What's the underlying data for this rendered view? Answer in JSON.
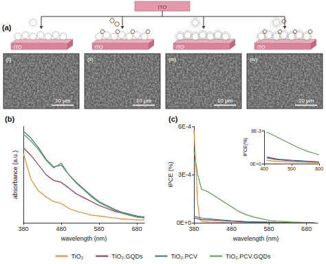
{
  "panel_a": {
    "label": "(a)",
    "top_substrate": "ITO",
    "columns": [
      {
        "substrate": "ITO",
        "sem_label": "(i)",
        "scale_bar": "10 μm"
      },
      {
        "substrate": "ITO",
        "sem_label": "(ii)",
        "scale_bar": "10 μm"
      },
      {
        "substrate": "ITO",
        "sem_label": "(iii)",
        "scale_bar": "10 μm"
      },
      {
        "substrate": "ITO",
        "sem_label": "(iv)",
        "scale_bar": "10 μm"
      }
    ]
  },
  "chart_data": [
    {
      "type": "line",
      "title": "(b)",
      "x_label": "wavelength (nm)",
      "y_label": "absorbance (a.u.)",
      "xlim": [
        380,
        700
      ],
      "xticks": [
        380,
        480,
        580,
        680
      ],
      "ylim": [
        0,
        1
      ],
      "tick_labels": "x",
      "grid": false,
      "legend": "bottom",
      "marker": "none",
      "series": [
        {
          "name": "TiO₂",
          "color": "#f0842c",
          "x": [
            380,
            400,
            420,
            440,
            460,
            480,
            500,
            520,
            540,
            560,
            580,
            600,
            620,
            640,
            660,
            680,
            700
          ],
          "values": [
            0.72,
            0.45,
            0.33,
            0.27,
            0.22,
            0.2,
            0.15,
            0.12,
            0.1,
            0.08,
            0.07,
            0.06,
            0.05,
            0.04,
            0.035,
            0.03,
            0.03
          ]
        },
        {
          "name": "TiO₂.GQDs",
          "color": "#8e2a55",
          "x": [
            380,
            400,
            420,
            440,
            460,
            480,
            500,
            520,
            540,
            560,
            580,
            600,
            620,
            640,
            660,
            680,
            700
          ],
          "values": [
            0.78,
            0.7,
            0.6,
            0.5,
            0.44,
            0.42,
            0.36,
            0.3,
            0.26,
            0.22,
            0.18,
            0.15,
            0.12,
            0.1,
            0.08,
            0.06,
            0.05
          ]
        },
        {
          "name": "TiO₂.PCV",
          "color": "#3b6e8f",
          "x": [
            380,
            400,
            420,
            440,
            460,
            480,
            500,
            520,
            540,
            560,
            580,
            600,
            620,
            640,
            660,
            680,
            700
          ],
          "values": [
            0.95,
            0.88,
            0.78,
            0.66,
            0.58,
            0.6,
            0.5,
            0.42,
            0.35,
            0.28,
            0.22,
            0.18,
            0.14,
            0.11,
            0.09,
            0.07,
            0.06
          ]
        },
        {
          "name": "TiO₂.PCV.GQDs",
          "color": "#5c9a4c",
          "x": [
            380,
            400,
            420,
            440,
            460,
            480,
            500,
            520,
            540,
            560,
            580,
            600,
            620,
            640,
            660,
            680,
            700
          ],
          "values": [
            0.92,
            0.85,
            0.76,
            0.65,
            0.57,
            0.62,
            0.5,
            0.41,
            0.34,
            0.27,
            0.21,
            0.17,
            0.13,
            0.1,
            0.08,
            0.06,
            0.05
          ]
        }
      ]
    },
    {
      "type": "line",
      "title": "(c)",
      "x_label": "wavelength (nm)",
      "y_label": "IPCE (%)",
      "xlim": [
        380,
        710
      ],
      "xticks": [
        380,
        480,
        580,
        680
      ],
      "ylim": [
        0,
        0.0006
      ],
      "yticks": [
        {
          "value": 0,
          "label": "0E+0"
        },
        {
          "value": 0.0003,
          "label": "3E-4"
        },
        {
          "value": 0.0006,
          "label": "6E-4"
        }
      ],
      "grid": false,
      "marker": "none",
      "series": [
        {
          "name": "TiO₂",
          "color": "#f0842c",
          "x": [
            380,
            385,
            390,
            395,
            400,
            420,
            480,
            580,
            700
          ],
          "values": [
            0.00058,
            0.00035,
            0.00012,
            3e-05,
            1e-05,
            5e-06,
            2e-06,
            1e-06,
            1e-06
          ]
        },
        {
          "name": "TiO₂.GQDs",
          "color": "#8e2a55",
          "x": [
            380,
            400,
            440,
            480,
            520,
            600,
            700
          ],
          "values": [
            3e-05,
            2e-05,
            1.5e-05,
            1e-05,
            5e-06,
            2e-06,
            1e-06
          ]
        },
        {
          "name": "TiO₂.PCV",
          "color": "#3b6e8f",
          "x": [
            380,
            400,
            440,
            480,
            520,
            600,
            700
          ],
          "values": [
            4e-05,
            3e-05,
            2e-05,
            1.2e-05,
            7e-06,
            3e-06,
            1e-06
          ]
        },
        {
          "name": "TiO₂.PCV.GQDs",
          "color": "#5c9a4c",
          "x": [
            380,
            390,
            400,
            420,
            440,
            460,
            480,
            500,
            520,
            540,
            560,
            580,
            600,
            640,
            680,
            700
          ],
          "values": [
            0.00045,
            0.0003,
            0.00021,
            0.00019,
            0.00016,
            0.00013,
            0.0001,
            7e-05,
            5e-05,
            3.5e-05,
            2.5e-05,
            1.5e-05,
            1e-05,
            5e-06,
            2e-06,
            1e-06
          ]
        }
      ]
    },
    {
      "type": "line",
      "y_label": "IPCE(%)",
      "xlim": [
        400,
        600
      ],
      "xticks": [
        400,
        500,
        600
      ],
      "ylim": [
        0,
        0.006
      ],
      "yticks": [
        {
          "value": 0,
          "label": "0E+0"
        },
        {
          "value": 0.006,
          "label": "6E-3"
        }
      ],
      "grid": false,
      "marker": "none",
      "series": [
        {
          "name": "TiO₂",
          "color": "#f0842c",
          "x": [
            410,
            450,
            500,
            600
          ],
          "values": [
            0.0006,
            0.0004,
            0.0003,
            0.0002
          ]
        },
        {
          "name": "TiO₂.GQDs",
          "color": "#8e2a55",
          "x": [
            410,
            450,
            500,
            600
          ],
          "values": [
            0.0012,
            0.0008,
            0.0006,
            0.0003
          ]
        },
        {
          "name": "TiO₂.PCV",
          "color": "#3b6e8f",
          "x": [
            410,
            450,
            500,
            600
          ],
          "values": [
            0.001,
            0.0007,
            0.0005,
            0.0003
          ]
        },
        {
          "name": "TiO₂.PCV.GQDs",
          "color": "#5c9a4c",
          "x": [
            410,
            420,
            440,
            460,
            480,
            500,
            520,
            540,
            560,
            580,
            600
          ],
          "values": [
            0.0057,
            0.0055,
            0.005,
            0.0045,
            0.004,
            0.0035,
            0.003,
            0.0026,
            0.0022,
            0.0019,
            0.0016
          ]
        }
      ]
    }
  ]
}
